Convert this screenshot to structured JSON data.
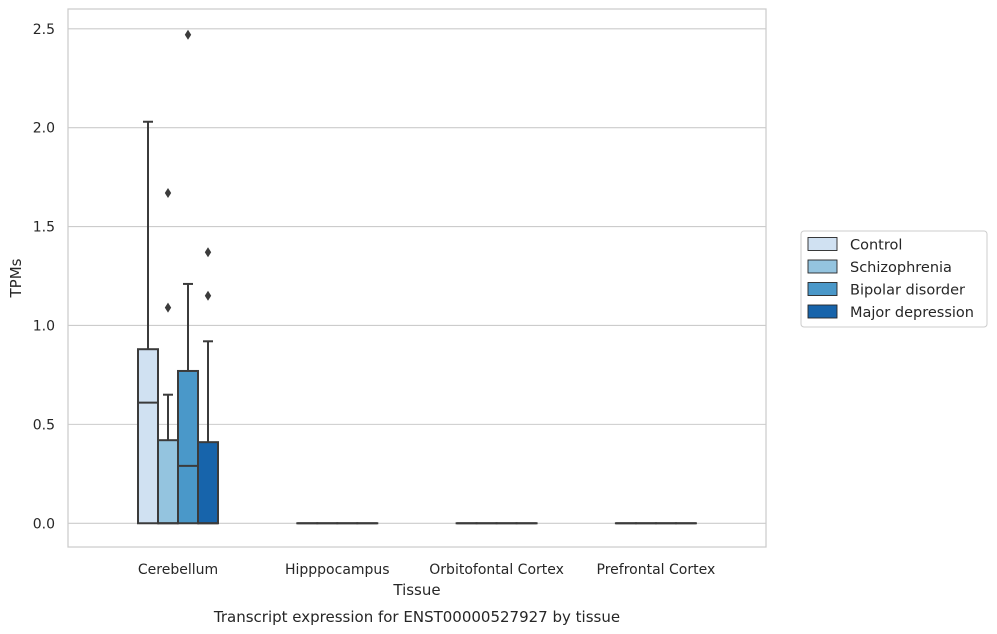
{
  "chart_data": {
    "type": "box",
    "xlabel": "Tissue",
    "ylabel": "TPMs",
    "caption": "Transcript expression for ENST00000527927 by tissue",
    "categories": [
      "Cerebellum",
      "Hipppocampus",
      "Orbitofontal Cortex",
      "Prefrontal Cortex"
    ],
    "ylim": [
      -0.12,
      2.6
    ],
    "yticks": [
      0.0,
      0.5,
      1.0,
      1.5,
      2.0,
      2.5
    ],
    "ytick_labels": [
      "0.0",
      "0.5",
      "1.0",
      "1.5",
      "2.0",
      "2.5"
    ],
    "grid": true,
    "legend_position": "right",
    "series": [
      {
        "name": "Control",
        "color": "#d0e1f2",
        "boxes": [
          {
            "q1": 0.0,
            "median": 0.61,
            "q3": 0.88,
            "whisker_low": 0.0,
            "whisker_high": 2.03,
            "outliers": []
          },
          {
            "q1": 0.0,
            "median": 0.0,
            "q3": 0.0,
            "whisker_low": 0.0,
            "whisker_high": 0.0,
            "outliers": []
          },
          {
            "q1": 0.0,
            "median": 0.0,
            "q3": 0.0,
            "whisker_low": 0.0,
            "whisker_high": 0.0,
            "outliers": []
          },
          {
            "q1": 0.0,
            "median": 0.0,
            "q3": 0.0,
            "whisker_low": 0.0,
            "whisker_high": 0.0,
            "outliers": []
          }
        ]
      },
      {
        "name": "Schizophrenia",
        "color": "#94c4df",
        "boxes": [
          {
            "q1": 0.0,
            "median": 0.0,
            "q3": 0.42,
            "whisker_low": 0.0,
            "whisker_high": 0.65,
            "outliers": [
              1.09,
              1.67
            ]
          },
          {
            "q1": 0.0,
            "median": 0.0,
            "q3": 0.0,
            "whisker_low": 0.0,
            "whisker_high": 0.0,
            "outliers": []
          },
          {
            "q1": 0.0,
            "median": 0.0,
            "q3": 0.0,
            "whisker_low": 0.0,
            "whisker_high": 0.0,
            "outliers": []
          },
          {
            "q1": 0.0,
            "median": 0.0,
            "q3": 0.0,
            "whisker_low": 0.0,
            "whisker_high": 0.0,
            "outliers": []
          }
        ]
      },
      {
        "name": "Bipolar disorder",
        "color": "#4a98c9",
        "boxes": [
          {
            "q1": 0.0,
            "median": 0.29,
            "q3": 0.77,
            "whisker_low": 0.0,
            "whisker_high": 1.21,
            "outliers": [
              2.47
            ]
          },
          {
            "q1": 0.0,
            "median": 0.0,
            "q3": 0.0,
            "whisker_low": 0.0,
            "whisker_high": 0.0,
            "outliers": []
          },
          {
            "q1": 0.0,
            "median": 0.0,
            "q3": 0.0,
            "whisker_low": 0.0,
            "whisker_high": 0.0,
            "outliers": []
          },
          {
            "q1": 0.0,
            "median": 0.0,
            "q3": 0.0,
            "whisker_low": 0.0,
            "whisker_high": 0.0,
            "outliers": []
          }
        ]
      },
      {
        "name": "Major depression",
        "color": "#1764ab",
        "boxes": [
          {
            "q1": 0.0,
            "median": 0.0,
            "q3": 0.41,
            "whisker_low": 0.0,
            "whisker_high": 0.92,
            "outliers": [
              1.15,
              1.37
            ]
          },
          {
            "q1": 0.0,
            "median": 0.0,
            "q3": 0.0,
            "whisker_low": 0.0,
            "whisker_high": 0.0,
            "outliers": []
          },
          {
            "q1": 0.0,
            "median": 0.0,
            "q3": 0.0,
            "whisker_low": 0.0,
            "whisker_high": 0.0,
            "outliers": []
          },
          {
            "q1": 0.0,
            "median": 0.0,
            "q3": 0.0,
            "whisker_low": 0.0,
            "whisker_high": 0.0,
            "outliers": []
          }
        ]
      }
    ]
  }
}
